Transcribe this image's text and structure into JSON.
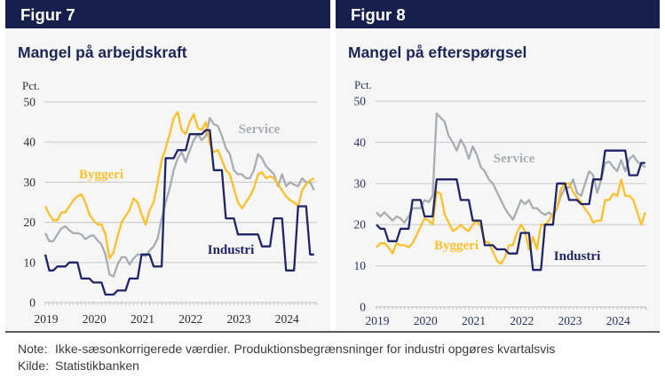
{
  "figures": [
    {
      "label": "Figur 7",
      "title": "Mangel på arbejdskraft"
    },
    {
      "label": "Figur 8",
      "title": "Mangel på efterspørgsel"
    }
  ],
  "footer": {
    "note_label": "Note:",
    "note": "Ikke-sæsonkorrigerede værdier. Produktionsbegrænsninger for industri opgøres kvartalsvis",
    "source_label": "Kilde:",
    "source": "Statistikbanken"
  },
  "colors": {
    "header": "#161f4d",
    "title": "#1b2454",
    "byggeri": "#fcbf2c",
    "industri": "#1f2568",
    "service": "#a8adb1"
  },
  "chart_data": [
    {
      "type": "line",
      "title": "Mangel på arbejdskraft",
      "xlabel": "",
      "ylabel": "Pct.",
      "ylim": [
        0,
        50
      ],
      "yticks": [
        0,
        10,
        20,
        30,
        40,
        50
      ],
      "x_start": "2019-01",
      "x_frequency": "monthly",
      "xticks": [
        "2019",
        "2020",
        "2021",
        "2022",
        "2023",
        "2024"
      ],
      "grid": true,
      "legend": "inline labels",
      "series": [
        {
          "name": "Service",
          "color": "#a8adb1",
          "values": [
            17.3,
            15.3,
            15.3,
            17,
            18.5,
            19,
            18,
            17.3,
            17.3,
            17,
            15.8,
            16.5,
            16.8,
            15.5,
            14.5,
            12,
            7,
            6.5,
            9.5,
            11.3,
            11.3,
            9.5,
            11,
            12,
            12,
            11.5,
            13,
            14,
            16,
            21,
            25,
            28.5,
            33,
            36,
            37.5,
            35,
            38,
            40.5,
            42,
            40.5,
            41.5,
            46,
            44.5,
            44,
            41.6,
            38.5,
            37,
            33,
            32,
            32,
            31,
            31,
            33,
            37,
            36,
            34,
            33,
            32,
            29,
            32,
            29,
            30,
            29.4,
            29,
            31,
            30,
            30,
            28
          ]
        },
        {
          "name": "Byggeri",
          "color": "#fcbf2c",
          "values": [
            24,
            22,
            20.5,
            20.5,
            22.5,
            22.5,
            24,
            25.5,
            26.5,
            27,
            25,
            22,
            20.5,
            19.5,
            19.5,
            17,
            11,
            12.5,
            16.5,
            20,
            21.6,
            23,
            26,
            25,
            22,
            19.5,
            23,
            25,
            30,
            35.5,
            38.5,
            42,
            46,
            47.5,
            43,
            42,
            45,
            47,
            43.5,
            43,
            45,
            39.5,
            37.5,
            38,
            35.6,
            33,
            32,
            28.5,
            25,
            23.5,
            25,
            26.5,
            28.5,
            32,
            32.5,
            31,
            31.5,
            31,
            29.5,
            28,
            26.5,
            25.5,
            25,
            24,
            28,
            29.5,
            30.5,
            31
          ]
        },
        {
          "name": "Industri",
          "color": "#1f2568",
          "values": [
            12,
            8,
            8,
            9,
            9,
            9,
            10,
            10,
            10,
            6,
            6,
            6,
            5,
            5,
            5,
            2,
            2,
            2,
            3,
            3,
            3,
            6,
            6,
            6,
            12,
            12,
            12,
            9,
            9,
            9,
            36,
            36,
            36,
            38,
            38,
            38,
            42,
            42,
            42,
            42,
            43,
            43,
            33,
            33,
            33,
            21,
            21,
            21,
            17,
            17,
            17,
            17,
            17,
            17,
            14,
            14,
            14,
            21,
            21,
            21,
            8,
            8,
            8,
            24,
            24,
            24,
            12,
            12
          ]
        }
      ]
    },
    {
      "type": "line",
      "title": "Mangel på efterspørgsel",
      "xlabel": "",
      "ylabel": "Pct.",
      "ylim": [
        0,
        50
      ],
      "yticks": [
        0,
        10,
        20,
        30,
        40,
        50
      ],
      "x_start": "2019-01",
      "x_frequency": "monthly",
      "xticks": [
        "2019",
        "2020",
        "2021",
        "2022",
        "2023",
        "2024"
      ],
      "grid": true,
      "legend": "inline labels",
      "series": [
        {
          "name": "Service",
          "color": "#a8adb1",
          "values": [
            23,
            22,
            23,
            22,
            21,
            22,
            21.5,
            20.5,
            22,
            24,
            24,
            24,
            26,
            25.5,
            27,
            47,
            46,
            45,
            41.5,
            40,
            38,
            40.7,
            39,
            36,
            39,
            37,
            34,
            33,
            31,
            30,
            28,
            26,
            24,
            22.5,
            21.2,
            23.4,
            26,
            25,
            26,
            24,
            24,
            23,
            22.4,
            23,
            22,
            24,
            27,
            29,
            29,
            31,
            27.7,
            27,
            30,
            33,
            32,
            27.7,
            31,
            35,
            35.3,
            34,
            33,
            35.7,
            33,
            36,
            36.8,
            35.3,
            34.6,
            34
          ]
        },
        {
          "name": "Byggeri",
          "color": "#fcbf2c",
          "values": [
            14.5,
            15.5,
            15.5,
            14.5,
            13,
            15.5,
            15,
            15,
            14.5,
            15.5,
            17.5,
            19.5,
            21.5,
            21,
            20,
            28,
            27.5,
            22.5,
            20.5,
            18.5,
            19,
            20,
            19,
            18.5,
            20,
            21,
            19.5,
            16,
            15.6,
            13.5,
            11.3,
            10.5,
            12,
            15,
            15,
            18,
            20,
            18.5,
            14,
            17,
            14,
            20,
            20,
            21,
            22.8,
            24,
            28.7,
            30,
            30,
            28,
            26.5,
            25.5,
            23.8,
            22.5,
            20.5,
            21,
            21,
            26,
            26,
            27.5,
            27,
            31,
            27,
            27,
            26,
            23,
            20,
            23
          ]
        },
        {
          "name": "Industri",
          "color": "#1f2568",
          "values": [
            20,
            19,
            19,
            16,
            16,
            16,
            19,
            19,
            19,
            26,
            26,
            26,
            22,
            22,
            22,
            31,
            31,
            31,
            31,
            31,
            31,
            26,
            26,
            26,
            21,
            21,
            21,
            15,
            15,
            15,
            14,
            14,
            14,
            13,
            13,
            13,
            18,
            18,
            18,
            9,
            9,
            9,
            20,
            20,
            20,
            30,
            30,
            30,
            26,
            26,
            26,
            25,
            25,
            25,
            31,
            31,
            31,
            38,
            38,
            38,
            38,
            38,
            38,
            32,
            32,
            32,
            35,
            35
          ]
        }
      ]
    }
  ]
}
